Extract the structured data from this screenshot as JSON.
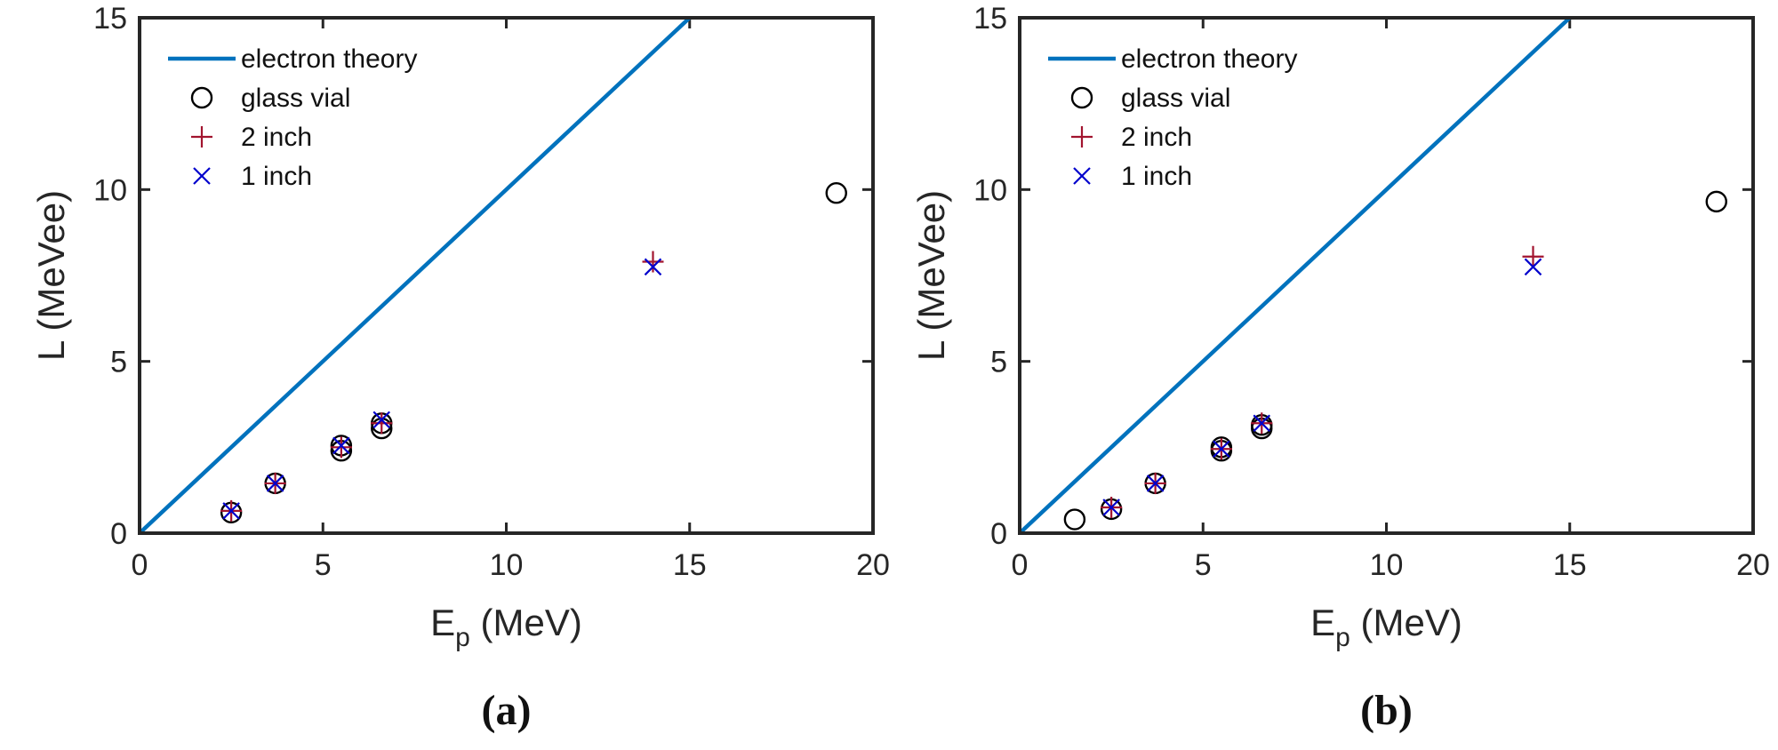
{
  "chart_data": [
    {
      "type": "scatter",
      "title": "",
      "panel_label": "(a)",
      "xlabel": {
        "main": "E",
        "sub": "p",
        "rest": " (MeV)"
      },
      "ylabel": "L (MeVee)",
      "xlim": [
        0,
        20
      ],
      "ylim": [
        0,
        15
      ],
      "xticks": [
        0,
        5,
        10,
        15,
        20
      ],
      "yticks": [
        0,
        5,
        10,
        15
      ],
      "grid": false,
      "legend_position": "top-left",
      "series": [
        {
          "name": "electron theory",
          "kind": "line",
          "color": "#0072BD",
          "x": [
            0,
            15
          ],
          "y": [
            0,
            15
          ]
        },
        {
          "name": "glass vial",
          "kind": "marker",
          "marker": "circle",
          "color": "#000000",
          "x": [
            2.5,
            3.7,
            5.5,
            5.5,
            6.6,
            6.6,
            19.0
          ],
          "y": [
            0.6,
            1.45,
            2.4,
            2.55,
            3.05,
            3.2,
            9.9
          ]
        },
        {
          "name": "2 inch",
          "kind": "marker",
          "marker": "plus",
          "color": "#A2142F",
          "x": [
            2.5,
            3.7,
            5.5,
            6.6,
            14.0
          ],
          "y": [
            0.65,
            1.45,
            2.5,
            3.2,
            7.9
          ]
        },
        {
          "name": "1 inch",
          "kind": "marker",
          "marker": "cross",
          "color": "#0000CC",
          "x": [
            2.5,
            3.7,
            5.5,
            6.6,
            14.0
          ],
          "y": [
            0.65,
            1.45,
            2.55,
            3.3,
            7.75
          ]
        }
      ]
    },
    {
      "type": "scatter",
      "title": "",
      "panel_label": "(b)",
      "xlabel": {
        "main": "E",
        "sub": "p",
        "rest": " (MeV)"
      },
      "ylabel": "L (MeVee)",
      "xlim": [
        0,
        20
      ],
      "ylim": [
        0,
        15
      ],
      "xticks": [
        0,
        5,
        10,
        15,
        20
      ],
      "yticks": [
        0,
        5,
        10,
        15
      ],
      "grid": false,
      "legend_position": "top-left",
      "series": [
        {
          "name": "electron theory",
          "kind": "line",
          "color": "#0072BD",
          "x": [
            0,
            15
          ],
          "y": [
            0,
            15
          ]
        },
        {
          "name": "glass vial",
          "kind": "marker",
          "marker": "circle",
          "color": "#000000",
          "x": [
            1.5,
            2.5,
            3.7,
            5.5,
            5.5,
            6.6,
            6.6,
            19.0
          ],
          "y": [
            0.4,
            0.7,
            1.45,
            2.4,
            2.5,
            3.05,
            3.15,
            9.65
          ]
        },
        {
          "name": "2 inch",
          "kind": "marker",
          "marker": "plus",
          "color": "#A2142F",
          "x": [
            2.5,
            3.7,
            5.5,
            6.6,
            14.0
          ],
          "y": [
            0.75,
            1.45,
            2.45,
            3.2,
            8.05
          ]
        },
        {
          "name": "1 inch",
          "kind": "marker",
          "marker": "cross",
          "color": "#0000CC",
          "x": [
            2.5,
            3.7,
            5.5,
            6.6,
            14.0
          ],
          "y": [
            0.75,
            1.45,
            2.45,
            3.2,
            7.75
          ]
        }
      ]
    }
  ]
}
